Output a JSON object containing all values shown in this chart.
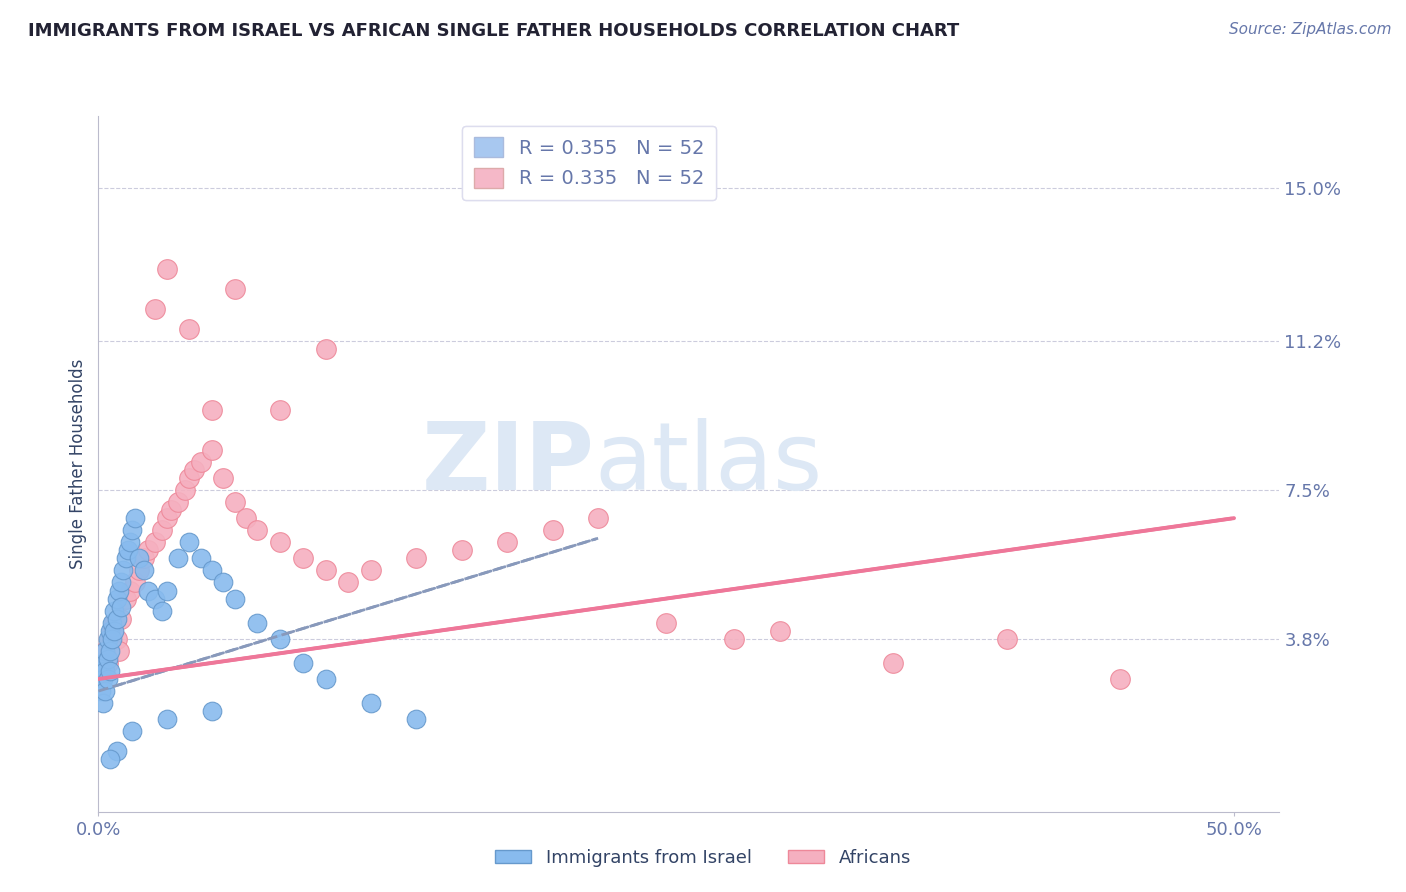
{
  "title": "IMMIGRANTS FROM ISRAEL VS AFRICAN SINGLE FATHER HOUSEHOLDS CORRELATION CHART",
  "source_text": "Source: ZipAtlas.com",
  "ylabel": "Single Father Households",
  "xlim": [
    0.0,
    0.52
  ],
  "ylim": [
    -0.005,
    0.168
  ],
  "ytick_values": [
    0.038,
    0.075,
    0.112,
    0.15
  ],
  "ytick_labels": [
    "3.8%",
    "7.5%",
    "11.2%",
    "15.0%"
  ],
  "legend1_label": "R = 0.355   N = 52",
  "legend2_label": "R = 0.335   N = 52",
  "legend1_color": "#a8c8f0",
  "legend2_color": "#f5b8c8",
  "israel_color": "#88bbee",
  "israel_edge": "#6699cc",
  "africans_color": "#f5b0c0",
  "africans_edge": "#ee8899",
  "trend_israel_color": "#8899bb",
  "trend_africans_color": "#ee7799",
  "grid_color": "#ccccdd",
  "watermark_main": "ZIP",
  "watermark_sub": "atlas",
  "watermark_color": "#dde8f5",
  "background_color": "#ffffff",
  "title_color": "#222233",
  "source_color": "#6677aa",
  "tick_color": "#6677aa",
  "label_color": "#334466",
  "israel_x": [
    0.001,
    0.001,
    0.002,
    0.002,
    0.002,
    0.003,
    0.003,
    0.003,
    0.004,
    0.004,
    0.004,
    0.005,
    0.005,
    0.005,
    0.006,
    0.006,
    0.007,
    0.007,
    0.008,
    0.008,
    0.009,
    0.01,
    0.01,
    0.011,
    0.012,
    0.013,
    0.014,
    0.015,
    0.016,
    0.018,
    0.02,
    0.022,
    0.025,
    0.028,
    0.03,
    0.035,
    0.04,
    0.045,
    0.05,
    0.055,
    0.06,
    0.07,
    0.08,
    0.09,
    0.1,
    0.12,
    0.14,
    0.05,
    0.03,
    0.015,
    0.008,
    0.005
  ],
  "israel_y": [
    0.03,
    0.025,
    0.032,
    0.028,
    0.022,
    0.035,
    0.03,
    0.025,
    0.038,
    0.033,
    0.028,
    0.04,
    0.035,
    0.03,
    0.042,
    0.038,
    0.045,
    0.04,
    0.048,
    0.043,
    0.05,
    0.046,
    0.052,
    0.055,
    0.058,
    0.06,
    0.062,
    0.065,
    0.068,
    0.058,
    0.055,
    0.05,
    0.048,
    0.045,
    0.05,
    0.058,
    0.062,
    0.058,
    0.055,
    0.052,
    0.048,
    0.042,
    0.038,
    0.032,
    0.028,
    0.022,
    0.018,
    0.02,
    0.018,
    0.015,
    0.01,
    0.008
  ],
  "africans_x": [
    0.002,
    0.003,
    0.004,
    0.005,
    0.006,
    0.007,
    0.008,
    0.009,
    0.01,
    0.012,
    0.014,
    0.016,
    0.018,
    0.02,
    0.022,
    0.025,
    0.028,
    0.03,
    0.032,
    0.035,
    0.038,
    0.04,
    0.042,
    0.045,
    0.05,
    0.055,
    0.06,
    0.065,
    0.07,
    0.08,
    0.09,
    0.1,
    0.11,
    0.12,
    0.14,
    0.16,
    0.18,
    0.2,
    0.22,
    0.25,
    0.28,
    0.3,
    0.35,
    0.4,
    0.45,
    0.04,
    0.06,
    0.08,
    0.1,
    0.025,
    0.03,
    0.05
  ],
  "africans_y": [
    0.03,
    0.035,
    0.032,
    0.038,
    0.04,
    0.042,
    0.038,
    0.035,
    0.043,
    0.048,
    0.05,
    0.052,
    0.055,
    0.058,
    0.06,
    0.062,
    0.065,
    0.068,
    0.07,
    0.072,
    0.075,
    0.078,
    0.08,
    0.082,
    0.085,
    0.078,
    0.072,
    0.068,
    0.065,
    0.062,
    0.058,
    0.055,
    0.052,
    0.055,
    0.058,
    0.06,
    0.062,
    0.065,
    0.068,
    0.042,
    0.038,
    0.04,
    0.032,
    0.038,
    0.028,
    0.115,
    0.125,
    0.095,
    0.11,
    0.12,
    0.13,
    0.095
  ],
  "trend_israel_x0": 0.0,
  "trend_israel_x1": 0.22,
  "trend_israel_y0": 0.025,
  "trend_israel_y1": 0.063,
  "trend_africans_x0": 0.0,
  "trend_africans_x1": 0.5,
  "trend_africans_y0": 0.028,
  "trend_africans_y1": 0.068
}
